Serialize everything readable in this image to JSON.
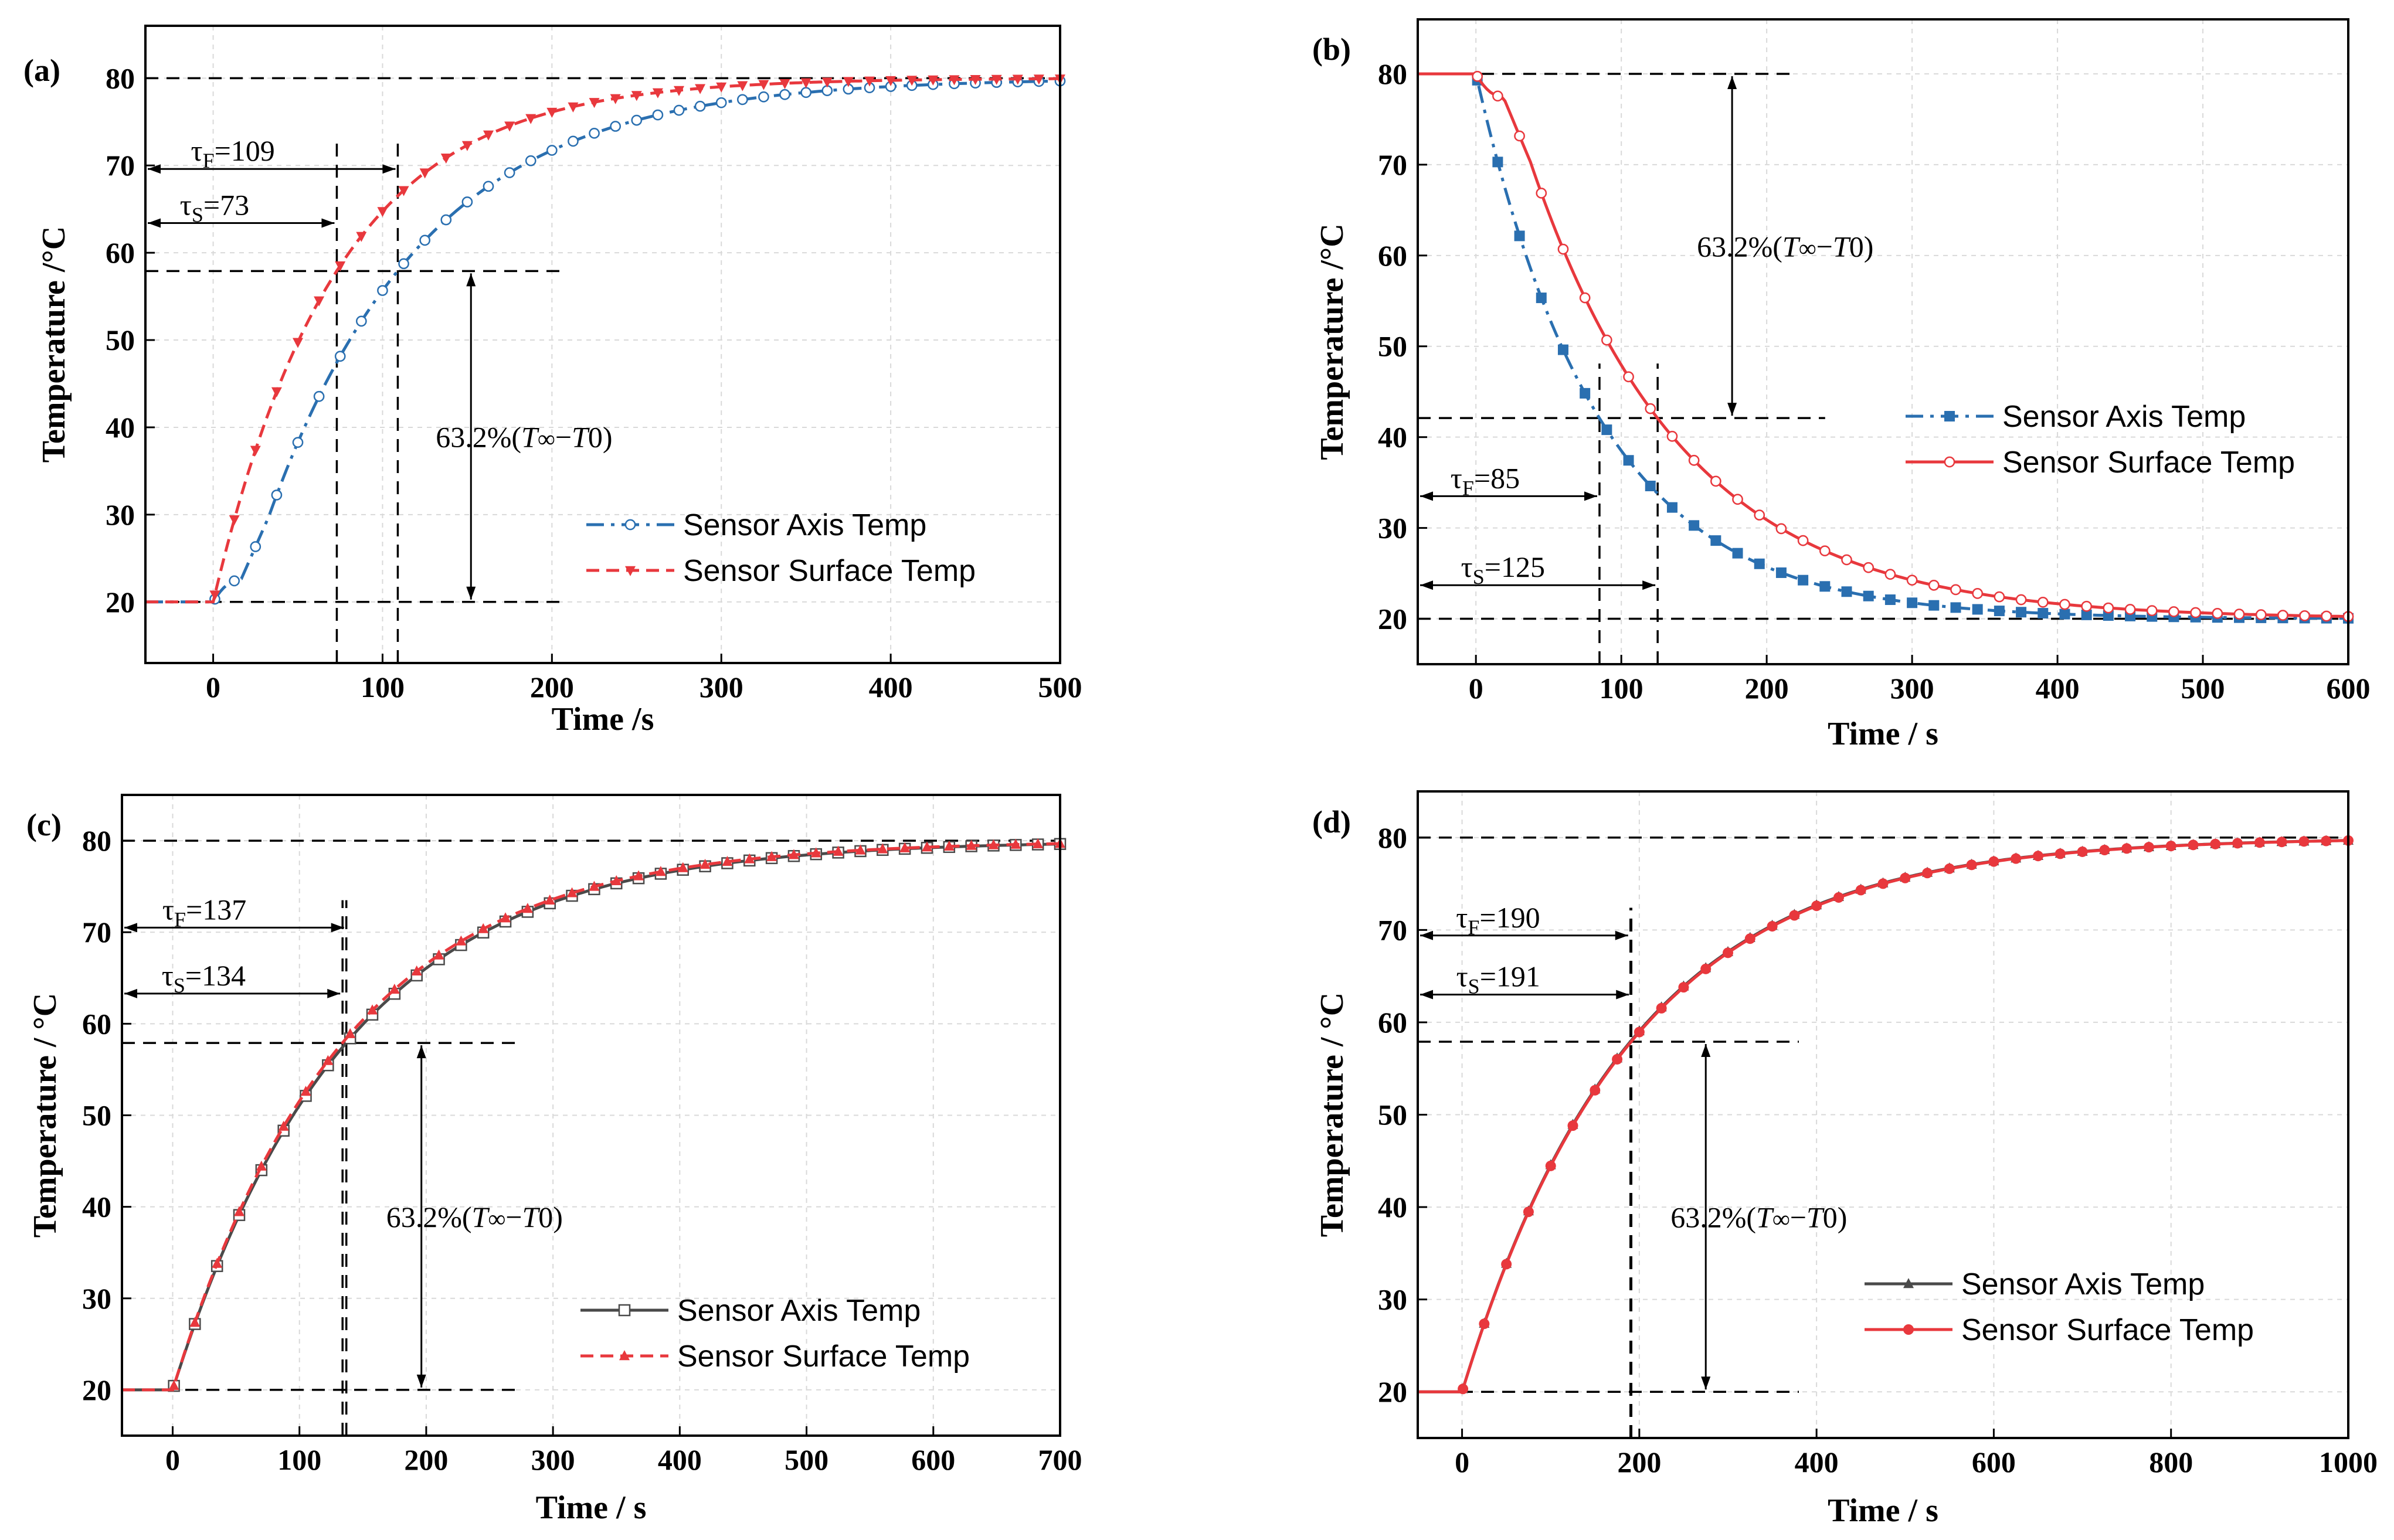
{
  "chart_data": [
    {
      "id": "a",
      "type": "line",
      "panel_label": "(a)",
      "xlabel": "Time /s",
      "ylabel": "Temperature /°C",
      "xlim": [
        -40,
        500
      ],
      "ylim": [
        13,
        86
      ],
      "xticks": [
        0,
        100,
        200,
        300,
        400,
        500
      ],
      "yticks": [
        20,
        30,
        40,
        50,
        60,
        70,
        80
      ],
      "grid": true,
      "T0": 20,
      "Tinf": 80,
      "T632": 57.9,
      "legend_position": "right",
      "series": [
        {
          "name": "Sensor Axis Temp",
          "color": "#2a6fb0",
          "line": "dashdot",
          "marker": "open-circle",
          "tau": 109,
          "sigmoid": true,
          "t_end": 500
        },
        {
          "name": "Sensor Surface Temp",
          "color": "#e8383d",
          "line": "dash",
          "marker": "down-triangle",
          "tau": 73,
          "sigmoid": false,
          "t_end": 500
        }
      ],
      "annotations": [
        {
          "sym": "τ",
          "sub": "F",
          "value": "=109",
          "t": 109,
          "y": 69.6
        },
        {
          "sym": "τ",
          "sub": "S",
          "value": "=73",
          "t": 73,
          "y": 63.4
        }
      ],
      "delta_label": {
        "prefix": "63.2%(",
        "t": "T",
        "inf": "∞",
        "minus": "−",
        "t2": "T",
        "zero": "0",
        "suffix": ")"
      }
    },
    {
      "id": "b",
      "type": "line",
      "panel_label": "(b)",
      "xlabel": "Time / s",
      "ylabel": "Temperature /°C",
      "xlim": [
        -40,
        600
      ],
      "ylim": [
        15,
        86
      ],
      "xticks": [
        0,
        100,
        200,
        300,
        400,
        500,
        600
      ],
      "yticks": [
        20,
        30,
        40,
        50,
        60,
        70,
        80
      ],
      "grid": true,
      "T0": 80,
      "Tinf": 20,
      "T632": 42.1,
      "legend_position": "right",
      "series": [
        {
          "name": "Sensor Axis Temp",
          "color": "#2a6fb0",
          "line": "dashdot",
          "marker": "square",
          "tau": 85,
          "sigmoid": false,
          "t_end": 600
        },
        {
          "name": "Sensor Surface Temp",
          "color": "#e8383d",
          "line": "solid",
          "marker": "open-circle",
          "tau": 125,
          "sigmoid": true,
          "t_end": 600
        }
      ],
      "annotations": [
        {
          "sym": "τ",
          "sub": "F",
          "value": "=85",
          "t": 85,
          "y": 33.5
        },
        {
          "sym": "τ",
          "sub": "S",
          "value": "=125",
          "t": 125,
          "y": 23.7
        }
      ],
      "delta_label": {
        "prefix": "63.2%(",
        "t": "T",
        "inf": "∞",
        "minus": "−",
        "t2": "T",
        "zero": "0",
        "suffix": ")"
      }
    },
    {
      "id": "c",
      "type": "line",
      "panel_label": "(c)",
      "xlabel": "Time / s",
      "ylabel": "Temperature / °C",
      "xlim": [
        -40,
        700
      ],
      "ylim": [
        15,
        85
      ],
      "xticks": [
        0,
        100,
        200,
        300,
        400,
        500,
        600,
        700
      ],
      "yticks": [
        20,
        30,
        40,
        50,
        60,
        70,
        80
      ],
      "grid": true,
      "T0": 20,
      "Tinf": 80,
      "T632": 57.9,
      "legend_position": "right",
      "series": [
        {
          "name": "Sensor Axis Temp",
          "color": "#4a4a4a",
          "line": "solid",
          "marker": "open-square",
          "tau": 137,
          "sigmoid": false,
          "t_end": 700
        },
        {
          "name": "Sensor Surface Temp",
          "color": "#e8383d",
          "line": "dash",
          "marker": "up-triangle",
          "tau": 134,
          "sigmoid": false,
          "t_end": 700
        }
      ],
      "annotations": [
        {
          "sym": "τ",
          "sub": "F",
          "value": "=137",
          "t": 137,
          "y": 70.5
        },
        {
          "sym": "τ",
          "sub": "S",
          "value": "=134",
          "t": 134,
          "y": 63.3
        }
      ],
      "delta_label": {
        "prefix": "63.2%(",
        "t": "T",
        "inf": "∞",
        "minus": "−",
        "t2": "T",
        "zero": "0",
        "suffix": ")"
      }
    },
    {
      "id": "d",
      "type": "line",
      "panel_label": "(d)",
      "xlabel": "Time / s",
      "ylabel": "Temperature / °C",
      "xlim": [
        -50,
        1000
      ],
      "ylim": [
        15,
        85
      ],
      "xticks": [
        0,
        200,
        400,
        600,
        800,
        1000
      ],
      "yticks": [
        20,
        30,
        40,
        50,
        60,
        70,
        80
      ],
      "grid": true,
      "T0": 20,
      "Tinf": 80,
      "T632": 57.9,
      "legend_position": "right",
      "series": [
        {
          "name": "Sensor Axis Temp",
          "color": "#4a4a4a",
          "line": "solid",
          "marker": "up-triangle",
          "tau": 190,
          "sigmoid": false,
          "t_end": 1000
        },
        {
          "name": "Sensor Surface Temp",
          "color": "#e8383d",
          "line": "solid",
          "marker": "circle",
          "tau": 191,
          "sigmoid": false,
          "t_end": 1000
        }
      ],
      "annotations": [
        {
          "sym": "τ",
          "sub": "F",
          "value": "=190",
          "t": 190,
          "y": 69.4
        },
        {
          "sym": "τ",
          "sub": "S",
          "value": "=191",
          "t": 191,
          "y": 63.0
        }
      ],
      "delta_label": {
        "prefix": "63.2%(",
        "t": "T",
        "inf": "∞",
        "minus": "−",
        "t2": "T",
        "zero": "0",
        "suffix": ")"
      }
    }
  ]
}
